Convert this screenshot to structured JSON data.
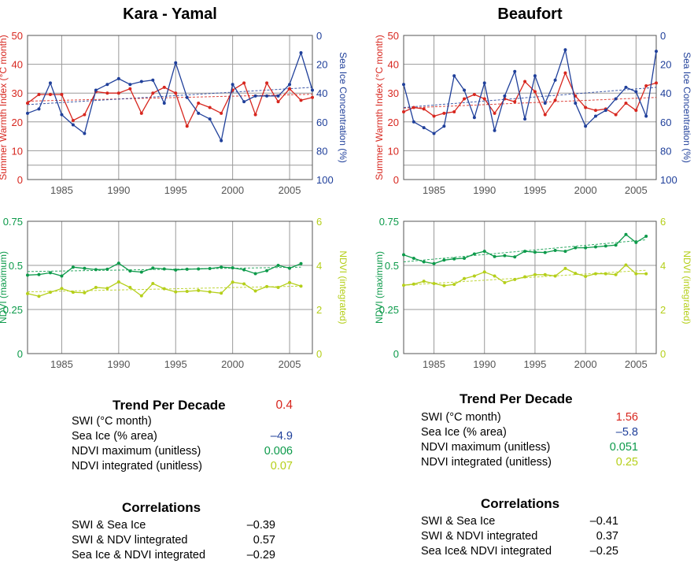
{
  "colors": {
    "swi": "#d7261e",
    "seaice": "#1f3f9a",
    "ndvi_max": "#0c9a4a",
    "ndvi_int": "#b5cf1a",
    "grid": "#9a9a9a"
  },
  "chart_data": [
    {
      "type": "line",
      "title": "Kara - Yamal",
      "ylabel": "Summer Warmth Index (°C month)",
      "y2label": "Sea Ice Concentration (%)",
      "xlim": [
        1982,
        2007
      ],
      "xticks": [
        1985,
        1990,
        1995,
        2000,
        2005
      ],
      "ylim": [
        0,
        50
      ],
      "yticks": [
        0,
        10,
        20,
        30,
        40,
        50
      ],
      "y2lim": [
        100,
        0
      ],
      "y2ticks": [
        0,
        20,
        40,
        60,
        80,
        100
      ],
      "grid": true,
      "x": [
        1982,
        1983,
        1984,
        1985,
        1986,
        1987,
        1988,
        1989,
        1990,
        1991,
        1992,
        1993,
        1994,
        1995,
        1996,
        1997,
        1998,
        1999,
        2000,
        2001,
        2002,
        2003,
        2004,
        2005,
        2006,
        2007
      ],
      "series": [
        {
          "name": "SWI",
          "axis": "left",
          "color": "#d7261e",
          "values": [
            26.5,
            29.5,
            29.5,
            29.5,
            20.5,
            22.5,
            30.5,
            30,
            30,
            31.5,
            23,
            30,
            32,
            30,
            18.5,
            26.5,
            25,
            23,
            31,
            33.5,
            22.5,
            33.5,
            27,
            31.5,
            27.5,
            28.5
          ]
        },
        {
          "name": "Sea Ice",
          "axis": "right",
          "color": "#1f3f9a",
          "values": [
            54,
            51,
            33,
            55,
            62,
            68,
            38,
            34,
            30,
            34,
            32,
            31,
            47,
            19,
            43,
            54,
            58,
            73,
            34,
            46,
            42,
            42,
            42,
            34,
            12,
            38
          ]
        }
      ],
      "trendlines": [
        {
          "series": "SWI",
          "start": 27.2,
          "end": 29.6
        },
        {
          "series": "Sea Ice",
          "start": 48,
          "end": 36
        }
      ]
    },
    {
      "type": "line",
      "title": "Beaufort",
      "ylabel": "Summer Warmth Index (°C month)",
      "y2label": "Sea Ice Concentration (%)",
      "xlim": [
        1982,
        2007
      ],
      "xticks": [
        1985,
        1990,
        1995,
        2000,
        2005
      ],
      "ylim": [
        0,
        50
      ],
      "yticks": [
        0,
        10,
        20,
        30,
        40,
        50
      ],
      "y2lim": [
        100,
        0
      ],
      "y2ticks": [
        0,
        20,
        40,
        60,
        80,
        100
      ],
      "grid": true,
      "x": [
        1982,
        1983,
        1984,
        1985,
        1986,
        1987,
        1988,
        1989,
        1990,
        1991,
        1992,
        1993,
        1994,
        1995,
        1996,
        1997,
        1998,
        1999,
        2000,
        2001,
        2002,
        2003,
        2004,
        2005,
        2006,
        2007
      ],
      "series": [
        {
          "name": "SWI",
          "axis": "left",
          "color": "#d7261e",
          "values": [
            23.5,
            25,
            24.5,
            22,
            23,
            23.5,
            28,
            29.5,
            28,
            23,
            28,
            27,
            34,
            30.5,
            22.5,
            27.5,
            37,
            29,
            25,
            24,
            24.5,
            22.5,
            26.5,
            24,
            32.5,
            33.5
          ]
        },
        {
          "name": "Sea Ice",
          "axis": "right",
          "color": "#1f3f9a",
          "values": [
            34,
            60,
            64,
            68,
            63,
            28,
            38,
            57,
            33,
            66,
            42,
            25,
            58,
            28,
            47,
            31,
            10,
            47,
            63,
            56,
            52,
            44,
            36,
            39,
            56,
            11
          ]
        }
      ],
      "trendlines": [
        {
          "series": "SWI",
          "start": 24.8,
          "end": 28.5
        },
        {
          "series": "Sea Ice",
          "start": 50,
          "end": 36
        }
      ]
    },
    {
      "type": "line",
      "title": "",
      "ylabel": "NDVI (maximum)",
      "y2label": "NDVI (integrated)",
      "xlim": [
        1982,
        2007
      ],
      "xticks": [
        1985,
        1990,
        1995,
        2000,
        2005
      ],
      "ylim": [
        0,
        0.75
      ],
      "yticks": [
        "0",
        "0.25",
        "0.5",
        "0.75"
      ],
      "y2lim": [
        0,
        6
      ],
      "y2ticks": [
        0,
        2,
        4,
        6
      ],
      "grid": true,
      "x": [
        1982,
        1983,
        1984,
        1985,
        1986,
        1987,
        1988,
        1989,
        1990,
        1991,
        1992,
        1993,
        1994,
        1995,
        1996,
        1997,
        1998,
        1999,
        2000,
        2001,
        2002,
        2003,
        2004,
        2005,
        2006
      ],
      "series": [
        {
          "name": "NDVI max",
          "axis": "left",
          "color": "#0c9a4a",
          "values": [
            0.445,
            0.448,
            0.458,
            0.44,
            0.49,
            0.483,
            0.476,
            0.478,
            0.512,
            0.468,
            0.462,
            0.485,
            0.48,
            0.474,
            0.478,
            0.48,
            0.482,
            0.49,
            0.486,
            0.475,
            0.453,
            0.47,
            0.5,
            0.484,
            0.51
          ]
        },
        {
          "name": "NDVI int",
          "axis": "right",
          "color": "#b5cf1a",
          "values": [
            2.72,
            2.6,
            2.78,
            2.95,
            2.78,
            2.76,
            3.0,
            2.96,
            3.25,
            3.0,
            2.62,
            3.18,
            2.94,
            2.8,
            2.82,
            2.86,
            2.8,
            2.74,
            3.24,
            3.16,
            2.84,
            3.04,
            3.0,
            3.22,
            3.06
          ]
        }
      ],
      "trendlines": [
        {
          "series": "NDVI max",
          "start": 0.465,
          "end": 0.49
        },
        {
          "series": "NDVI int",
          "start": 2.8,
          "end": 3.06
        }
      ]
    },
    {
      "type": "line",
      "title": "",
      "ylabel": "NDVI (maximum)",
      "y2label": "NDVI (integrated)",
      "xlim": [
        1982,
        2007
      ],
      "xticks": [
        1985,
        1990,
        1995,
        2000,
        2005
      ],
      "ylim": [
        0,
        0.75
      ],
      "yticks": [
        "0",
        "0.25",
        "0.5",
        "0.75"
      ],
      "y2lim": [
        0,
        6
      ],
      "y2ticks": [
        0,
        2,
        4,
        6
      ],
      "grid": true,
      "x": [
        1982,
        1983,
        1984,
        1985,
        1986,
        1987,
        1988,
        1989,
        1990,
        1991,
        1992,
        1993,
        1994,
        1995,
        1996,
        1997,
        1998,
        1999,
        2000,
        2001,
        2002,
        2003,
        2004,
        2005,
        2006
      ],
      "series": [
        {
          "name": "NDVI max",
          "axis": "left",
          "color": "#0c9a4a",
          "values": [
            0.56,
            0.54,
            0.52,
            0.51,
            0.53,
            0.537,
            0.54,
            0.565,
            0.58,
            0.55,
            0.555,
            0.548,
            0.58,
            0.575,
            0.573,
            0.585,
            0.58,
            0.6,
            0.6,
            0.605,
            0.61,
            0.615,
            0.675,
            0.63,
            0.665
          ]
        },
        {
          "name": "NDVI int",
          "axis": "right",
          "color": "#b5cf1a",
          "values": [
            3.1,
            3.15,
            3.28,
            3.18,
            3.08,
            3.14,
            3.4,
            3.52,
            3.7,
            3.52,
            3.22,
            3.36,
            3.48,
            3.58,
            3.58,
            3.52,
            3.86,
            3.64,
            3.5,
            3.62,
            3.62,
            3.58,
            4.02,
            3.62,
            3.62
          ]
        }
      ],
      "trendlines": [
        {
          "series": "NDVI max",
          "start": 0.52,
          "end": 0.645
        },
        {
          "series": "NDVI int",
          "start": 3.1,
          "end": 3.78
        }
      ]
    }
  ],
  "tables": {
    "left": {
      "trend_title": "Trend Per Decade",
      "trend_rows": [
        {
          "label": "SWI (°C month)",
          "value": "0.4",
          "color": "#d7261e"
        },
        {
          "label": "Sea Ice (% area)",
          "value": "–4.9",
          "color": "#1f3f9a"
        },
        {
          "label": "NDVI maximum (unitless)",
          "value": "0.006",
          "color": "#0c9a4a"
        },
        {
          "label": "NDVI integrated (unitless)",
          "value": "0.07",
          "color": "#b5cf1a"
        }
      ],
      "corr_title": "Correlations",
      "corr_rows": [
        {
          "label": "SWI & Sea Ice",
          "value": "–0.39"
        },
        {
          "label": "SWI & NDV lintegrated",
          "value": "0.57"
        },
        {
          "label": "Sea Ice & NDVI integrated",
          "value": "–0.29"
        }
      ]
    },
    "right": {
      "trend_title": "Trend Per Decade",
      "trend_rows": [
        {
          "label": "SWI (°C month)",
          "value": "1.56",
          "color": "#d7261e"
        },
        {
          "label": "Sea Ice (% area)",
          "value": "–5.8",
          "color": "#1f3f9a"
        },
        {
          "label": "NDVI maximum (unitless)",
          "value": "0.051",
          "color": "#0c9a4a"
        },
        {
          "label": "NDVI integrated (unitless)",
          "value": "0.25",
          "color": "#b5cf1a"
        }
      ],
      "corr_title": "Correlations",
      "corr_rows": [
        {
          "label": "SWI & Sea Ice",
          "value": "–0.41"
        },
        {
          "label": "SWI & NDVI integrated",
          "value": "0.37"
        },
        {
          "label": "Sea Ice&  NDVI integrated",
          "value": "–0.25"
        }
      ]
    }
  }
}
